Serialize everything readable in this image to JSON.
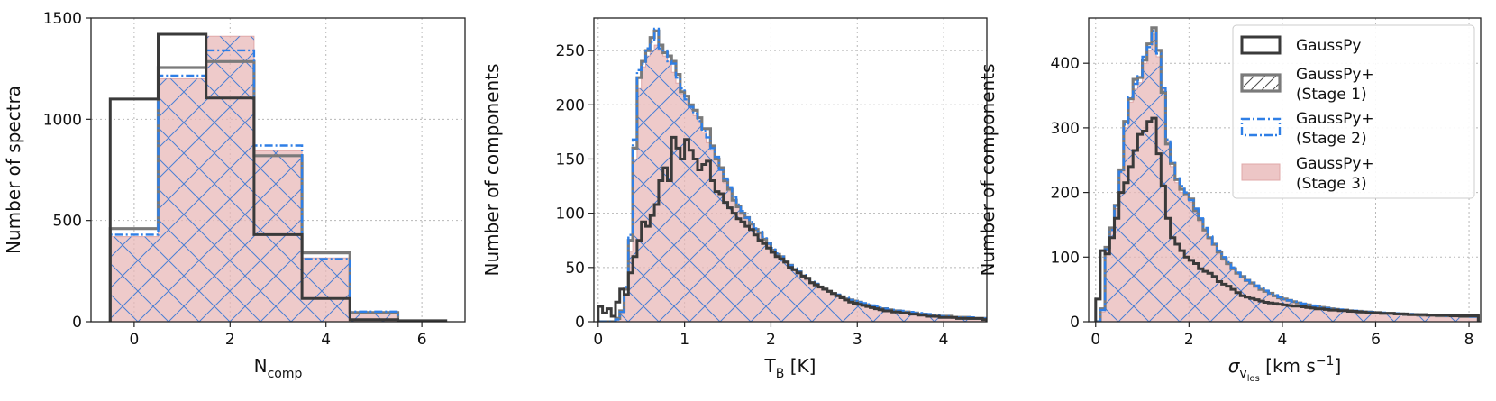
{
  "colors": {
    "gausspy": "#3a3a3a",
    "stage1": "#7a7a7a",
    "stage2": "#2f7fe6",
    "stage3_fill": "#e8b8b8",
    "stage3_edge": "#e0a8a8",
    "hatch": "#4a7fd4",
    "grid": "#b8b8b8"
  },
  "legend": {
    "items": [
      {
        "key": "gausspy",
        "line1": "GaussPy",
        "line2": ""
      },
      {
        "key": "stage1",
        "line1": "GaussPy+",
        "line2": "(Stage 1)"
      },
      {
        "key": "stage2",
        "line1": "GaussPy+",
        "line2": "(Stage 2)"
      },
      {
        "key": "stage3",
        "line1": "GaussPy+",
        "line2": "(Stage 3)"
      }
    ]
  },
  "chart_data": [
    {
      "type": "histogram",
      "xlabel_main": "N",
      "xlabel_sub": "comp",
      "ylabel": "Number of spectra",
      "xlim": [
        -0.9,
        6.9
      ],
      "ylim": [
        0,
        1500
      ],
      "xticks": [
        0,
        2,
        4,
        6
      ],
      "yticks": [
        0,
        500,
        1000,
        1500
      ],
      "grid": true,
      "bin_edges": [
        -0.5,
        0.5,
        1.5,
        2.5,
        3.5,
        4.5,
        5.5,
        6.5
      ],
      "series": [
        {
          "key": "gausspy",
          "values": [
            1100,
            1420,
            1105,
            430,
            115,
            10,
            5
          ]
        },
        {
          "key": "stage1",
          "values": [
            460,
            1255,
            1285,
            820,
            340,
            45,
            0
          ]
        },
        {
          "key": "stage2",
          "values": [
            430,
            1215,
            1340,
            870,
            310,
            50,
            0
          ]
        },
        {
          "key": "stage3",
          "values": [
            420,
            1200,
            1410,
            845,
            315,
            40,
            0
          ]
        }
      ]
    },
    {
      "type": "histogram",
      "xlabel_main": "T",
      "xlabel_sub": "B",
      "xlabel_suffix": " [K]",
      "ylabel": "Number of components",
      "xlim": [
        -0.05,
        4.5
      ],
      "ylim": [
        0,
        280
      ],
      "xticks": [
        0,
        1,
        2,
        3,
        4
      ],
      "yticks": [
        0,
        50,
        100,
        150,
        200,
        250
      ],
      "grid": true,
      "bin_start": 0,
      "bin_width": 0.05,
      "series": [
        {
          "key": "stage3",
          "values": [
            0,
            0,
            0,
            0,
            2,
            8,
            25,
            65,
            150,
            215,
            235,
            245,
            250,
            255,
            250,
            245,
            240,
            230,
            220,
            210,
            205,
            200,
            190,
            185,
            175,
            165,
            158,
            150,
            140,
            128,
            120,
            112,
            105,
            100,
            95,
            90,
            85,
            80,
            75,
            70,
            66,
            62,
            58,
            54,
            50,
            47,
            44,
            41,
            38,
            35,
            33,
            31,
            29,
            27,
            25,
            23,
            22,
            20,
            19,
            18,
            17,
            16,
            15,
            14,
            13,
            12,
            11,
            10,
            10,
            9,
            9,
            8,
            8,
            7,
            7,
            6,
            6,
            6,
            5,
            5,
            5,
            4,
            4,
            4,
            4,
            3,
            3,
            3,
            3,
            3
          ]
        },
        {
          "key": "stage1",
          "values": [
            0,
            0,
            0,
            0,
            3,
            10,
            30,
            75,
            160,
            225,
            240,
            250,
            262,
            268,
            255,
            248,
            245,
            240,
            228,
            212,
            208,
            200,
            195,
            188,
            178,
            178,
            162,
            150,
            142,
            130,
            122,
            112,
            106,
            100,
            96,
            90,
            85,
            82,
            76,
            72,
            66,
            62,
            60,
            55,
            52,
            48,
            46,
            42,
            40,
            36,
            34,
            32,
            30,
            28,
            26,
            24,
            23,
            21,
            20,
            19,
            18,
            16,
            15,
            14,
            13,
            12,
            12,
            11,
            10,
            10,
            9,
            9,
            8,
            8,
            7,
            7,
            6,
            6,
            5,
            5,
            5,
            5,
            4,
            4,
            4,
            4,
            3,
            3,
            3,
            3
          ]
        },
        {
          "key": "stage2",
          "values": [
            0,
            0,
            0,
            0,
            2,
            9,
            32,
            80,
            168,
            232,
            238,
            252,
            258,
            270,
            252,
            250,
            240,
            238,
            225,
            215,
            205,
            198,
            192,
            185,
            176,
            170,
            160,
            152,
            140,
            132,
            124,
            115,
            108,
            102,
            96,
            92,
            86,
            83,
            78,
            72,
            68,
            63,
            60,
            56,
            52,
            49,
            46,
            43,
            40,
            37,
            35,
            32,
            30,
            28,
            26,
            25,
            23,
            22,
            20,
            19,
            18,
            17,
            16,
            15,
            14,
            13,
            12,
            11,
            11,
            10,
            10,
            9,
            9,
            8,
            8,
            7,
            7,
            6,
            6,
            5,
            5,
            5,
            4,
            4,
            4,
            4,
            4,
            3,
            3,
            3
          ]
        },
        {
          "key": "gausspy",
          "values": [
            14,
            8,
            12,
            5,
            18,
            30,
            25,
            45,
            60,
            75,
            92,
            88,
            98,
            108,
            130,
            142,
            130,
            170,
            160,
            150,
            168,
            158,
            150,
            140,
            145,
            148,
            130,
            120,
            118,
            110,
            105,
            100,
            95,
            92,
            88,
            85,
            80,
            75,
            72,
            68,
            64,
            60,
            58,
            55,
            50,
            48,
            45,
            42,
            40,
            36,
            34,
            32,
            30,
            28,
            26,
            24,
            22,
            20,
            18,
            17,
            16,
            15,
            14,
            13,
            12,
            11,
            10,
            10,
            9,
            9,
            8,
            8,
            7,
            7,
            6,
            6,
            5,
            5,
            5,
            4,
            4,
            4,
            4,
            3,
            3,
            3,
            3,
            3,
            3,
            2
          ]
        }
      ]
    },
    {
      "type": "histogram",
      "xlabel_main": "σ",
      "xlabel_sub": "v",
      "xlabel_subsub": "los",
      "xlabel_suffix": " [km s",
      "xlabel_sup": "−1",
      "xlabel_close": "]",
      "ylabel": "Number of components",
      "xlim": [
        -0.15,
        8.25
      ],
      "ylim": [
        0,
        470
      ],
      "xticks": [
        0,
        2,
        4,
        6,
        8
      ],
      "yticks": [
        0,
        100,
        200,
        300,
        400
      ],
      "grid": true,
      "bin_start": 0,
      "bin_width": 0.1,
      "series": [
        {
          "key": "stage3",
          "values": [
            0,
            15,
            110,
            140,
            175,
            230,
            300,
            340,
            360,
            370,
            400,
            420,
            445,
            410,
            360,
            280,
            240,
            215,
            200,
            195,
            185,
            170,
            155,
            140,
            128,
            118,
            105,
            95,
            88,
            80,
            74,
            68,
            62,
            58,
            54,
            50,
            46,
            42,
            39,
            36,
            34,
            32,
            30,
            28,
            26,
            25,
            24,
            23,
            22,
            21,
            20,
            19,
            18,
            18,
            17,
            16,
            16,
            15,
            15,
            14,
            14,
            13,
            13,
            12,
            12,
            12,
            11,
            11,
            11,
            10,
            10,
            10,
            10,
            9,
            9,
            9,
            9,
            8,
            8,
            8,
            8,
            8
          ]
        },
        {
          "key": "stage1",
          "values": [
            0,
            20,
            115,
            145,
            180,
            235,
            310,
            345,
            375,
            378,
            405,
            430,
            455,
            420,
            355,
            275,
            245,
            220,
            205,
            198,
            190,
            172,
            158,
            142,
            130,
            120,
            108,
            98,
            90,
            82,
            75,
            70,
            64,
            60,
            55,
            50,
            47,
            44,
            40,
            37,
            35,
            33,
            31,
            29,
            27,
            26,
            24,
            23,
            22,
            21,
            20,
            19,
            18,
            18,
            17,
            16,
            16,
            15,
            15,
            14,
            14,
            13,
            13,
            13,
            12,
            12,
            11,
            11,
            11,
            10,
            10,
            10,
            10,
            9,
            9,
            9,
            9,
            9,
            8,
            8,
            8,
            8
          ]
        },
        {
          "key": "stage2",
          "values": [
            0,
            18,
            112,
            142,
            178,
            232,
            305,
            348,
            368,
            380,
            410,
            425,
            450,
            415,
            362,
            282,
            248,
            222,
            210,
            200,
            188,
            175,
            160,
            145,
            132,
            120,
            110,
            100,
            92,
            84,
            76,
            70,
            64,
            60,
            56,
            52,
            48,
            44,
            41,
            38,
            35,
            33,
            31,
            29,
            28,
            26,
            25,
            24,
            22,
            21,
            20,
            20,
            19,
            18,
            17,
            17,
            16,
            16,
            15,
            15,
            14,
            14,
            13,
            13,
            13,
            12,
            12,
            12,
            11,
            11,
            11,
            10,
            10,
            10,
            10,
            9,
            9,
            9,
            9,
            9,
            8,
            8
          ]
        },
        {
          "key": "gausspy",
          "values": [
            35,
            110,
            105,
            130,
            160,
            200,
            215,
            240,
            265,
            290,
            295,
            310,
            315,
            260,
            210,
            160,
            130,
            120,
            110,
            100,
            95,
            90,
            82,
            78,
            75,
            70,
            62,
            58,
            55,
            50,
            45,
            40,
            38,
            36,
            34,
            32,
            30,
            29,
            28,
            27,
            26,
            25,
            24,
            24,
            23,
            22,
            21,
            20,
            20,
            19,
            18,
            18,
            17,
            17,
            16,
            16,
            15,
            15,
            14,
            14,
            14,
            13,
            13,
            13,
            12,
            12,
            12,
            11,
            11,
            11,
            11,
            10,
            10,
            10,
            10,
            10,
            9,
            9,
            9,
            9,
            9,
            9
          ]
        }
      ]
    }
  ]
}
